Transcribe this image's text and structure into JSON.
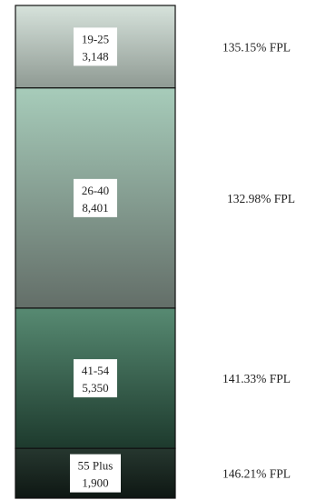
{
  "chart_data": {
    "type": "bar",
    "subtype": "stacked-column",
    "orientation": "vertical",
    "series_order": "top-to-bottom",
    "categories": [
      "19-25",
      "26-40",
      "41-54",
      "55 Plus"
    ],
    "values": [
      3148,
      8401,
      5350,
      1900
    ],
    "value_labels": [
      "3,148",
      "8,401",
      "5,350",
      "1,900"
    ],
    "annotations": [
      "135.15% FPL",
      "132.98% FPL",
      "141.33% FPL",
      "146.21% FPL"
    ],
    "colors": [
      {
        "top": "#d6e2db",
        "bottom": "#8f9a93"
      },
      {
        "top": "#a7ccba",
        "bottom": "#636e68"
      },
      {
        "top": "#578a72",
        "bottom": "#1d3a2d"
      },
      {
        "top": "#26372f",
        "bottom": "#0e1713"
      }
    ],
    "title": "",
    "xlabel": "",
    "ylabel": "",
    "grid": false,
    "legend": "none"
  }
}
